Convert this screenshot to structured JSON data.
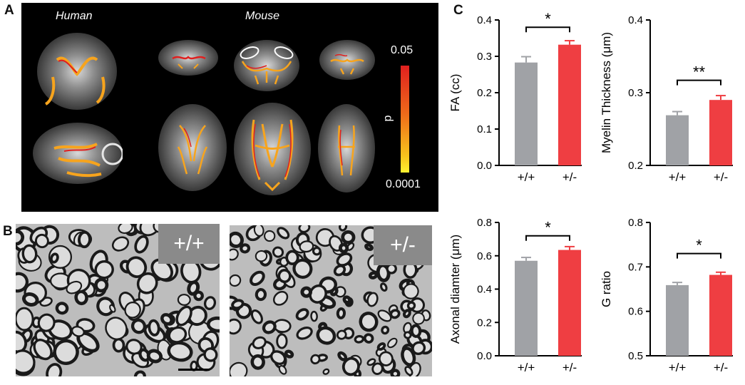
{
  "panel_labels": {
    "a": "A",
    "b": "B",
    "c": "C"
  },
  "panel_a": {
    "human_label": "Human",
    "mouse_label": "Mouse",
    "colorbar": {
      "top": "0.05",
      "bottom": "0.0001",
      "axis": "p"
    }
  },
  "panel_b": {
    "left_genotype": "+/+",
    "right_genotype": "+/-"
  },
  "colors": {
    "wt": "#a0a2a6",
    "het": "#ef3e42"
  },
  "chart_data": [
    {
      "type": "bar",
      "categories": [
        "+/+",
        "+/-"
      ],
      "values": [
        0.283,
        0.332
      ],
      "errors": [
        0.016,
        0.011
      ],
      "ylabel": "FA (cc)",
      "ylim": [
        0,
        0.4
      ],
      "yticks": [
        "0.0",
        "0.1",
        "0.2",
        "0.3",
        "0.4"
      ],
      "significance": "*",
      "sig_y": 0.38
    },
    {
      "type": "bar",
      "categories": [
        "+/+",
        "+/-"
      ],
      "values": [
        0.269,
        0.29
      ],
      "errors": [
        0.005,
        0.006
      ],
      "ylabel": "Myelin Thickness (μm)",
      "ylim": [
        0.2,
        0.4
      ],
      "yticks": [
        "0.2",
        "0.3",
        "0.4"
      ],
      "significance": "**",
      "sig_y": 0.317
    },
    {
      "type": "bar",
      "categories": [
        "+/+",
        "+/-"
      ],
      "values": [
        0.57,
        0.635
      ],
      "errors": [
        0.02,
        0.02
      ],
      "ylabel": "Axonal diamter (μm)",
      "ylim": [
        0,
        0.8
      ],
      "yticks": [
        "0.0",
        "0.2",
        "0.4",
        "0.6",
        "0.8"
      ],
      "significance": "*",
      "sig_y": 0.72
    },
    {
      "type": "bar",
      "categories": [
        "+/+",
        "+/-"
      ],
      "values": [
        0.659,
        0.682
      ],
      "errors": [
        0.006,
        0.006
      ],
      "ylabel": "G ratio",
      "ylim": [
        0.5,
        0.8
      ],
      "yticks": [
        "0.5",
        "0.6",
        "0.7",
        "0.8"
      ],
      "significance": "*",
      "sig_y": 0.73
    }
  ]
}
